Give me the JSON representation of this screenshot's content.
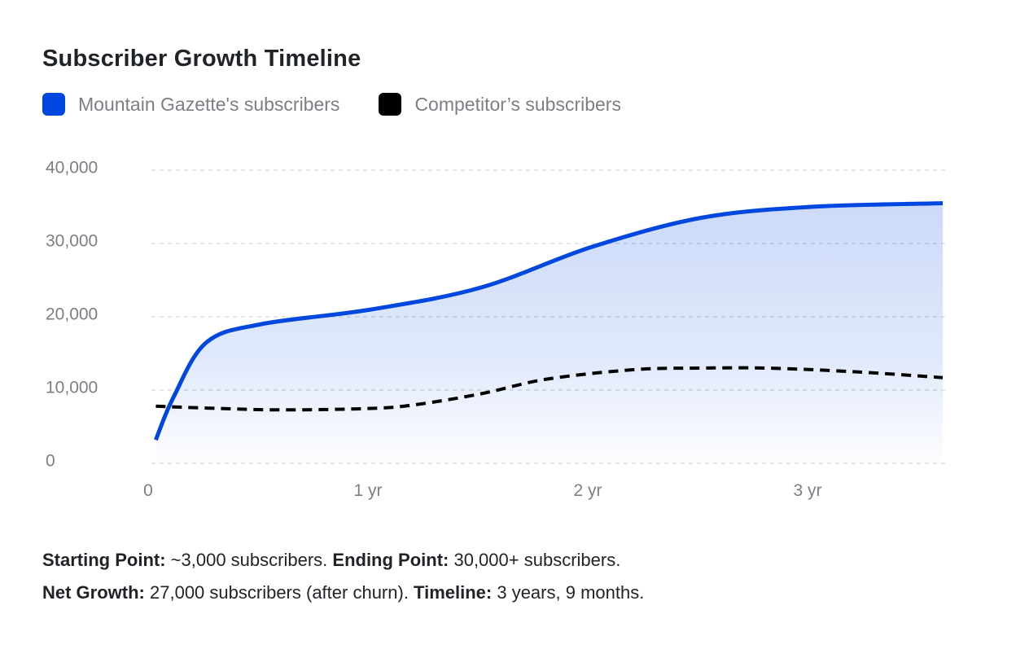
{
  "header": {
    "title": "Subscriber Growth Timeline"
  },
  "legend": [
    {
      "label": "Mountain Gazette's subscribers",
      "color": "#0047e0"
    },
    {
      "label": "Competitor’s subscribers",
      "color": "#000000"
    }
  ],
  "chart_data": {
    "type": "line",
    "title": "Subscriber Growth Timeline",
    "xlabel": "",
    "ylabel": "",
    "x_ticks": [
      {
        "value": 0,
        "label": "0"
      },
      {
        "value": 1,
        "label": "1 yr"
      },
      {
        "value": 2,
        "label": "2 yr"
      },
      {
        "value": 3,
        "label": "3 yr"
      }
    ],
    "y_ticks": [
      {
        "value": 0,
        "label": "0"
      },
      {
        "value": 10000,
        "label": "10,000"
      },
      {
        "value": 20000,
        "label": "20,000"
      },
      {
        "value": 30000,
        "label": "30,000"
      },
      {
        "value": 40000,
        "label": "40,000"
      }
    ],
    "xlim": [
      0,
      3.6
    ],
    "ylim": [
      0,
      40000
    ],
    "grid": true,
    "legend_position": "top-left",
    "series": [
      {
        "name": "Mountain Gazette's subscribers",
        "color": "#0047e0",
        "style": "solid",
        "area": true,
        "x": [
          0.02,
          0.1,
          0.25,
          0.5,
          1.0,
          1.5,
          2.0,
          2.5,
          3.0,
          3.6
        ],
        "y": [
          3200,
          9000,
          16500,
          19000,
          21000,
          24000,
          29500,
          33500,
          35000,
          35500
        ]
      },
      {
        "name": "Competitor’s subscribers",
        "color": "#000000",
        "style": "dashed",
        "area": false,
        "x": [
          0.02,
          0.3,
          0.6,
          1.0,
          1.2,
          1.5,
          1.8,
          2.2,
          2.5,
          2.8,
          3.2,
          3.6
        ],
        "y": [
          7800,
          7500,
          7300,
          7500,
          8000,
          9500,
          11500,
          12800,
          13000,
          13000,
          12500,
          11700
        ]
      }
    ]
  },
  "footnotes": {
    "line1": [
      {
        "text": "Starting Point:",
        "bold": true
      },
      {
        "text": " ~3,000 subscribers. ",
        "bold": false
      },
      {
        "text": "Ending Point:",
        "bold": true
      },
      {
        "text": " 30,000+ subscribers.",
        "bold": false
      }
    ],
    "line2": [
      {
        "text": "Net Growth:",
        "bold": true
      },
      {
        "text": " 27,000 subscribers (after churn). ",
        "bold": false
      },
      {
        "text": "Timeline:",
        "bold": true
      },
      {
        "text": " 3 years, 9 months.",
        "bold": false
      }
    ]
  }
}
